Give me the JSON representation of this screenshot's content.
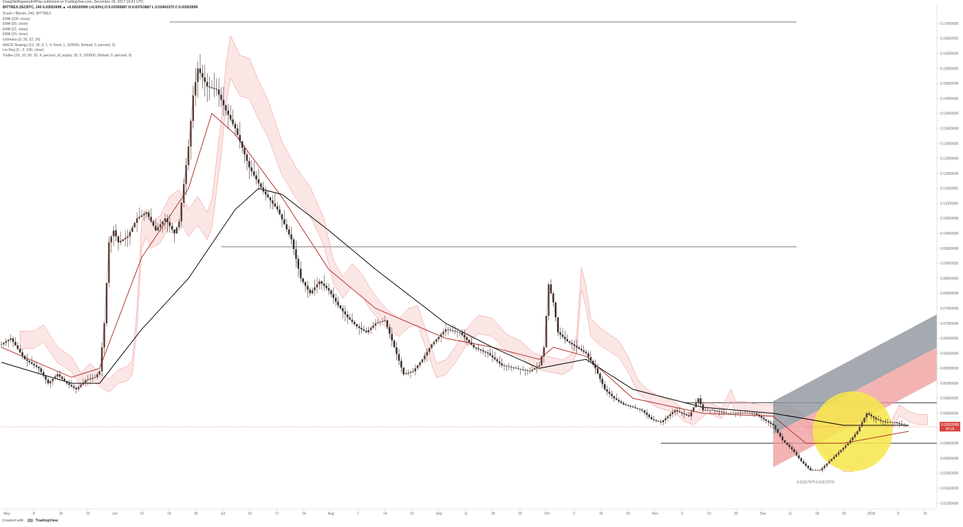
{
  "header": {
    "line1": "DawgSkillingsworth4Play published on TradingView.com, December 29, 2017 19:41 UTC",
    "line2": "BITTREX:ZECBTC, 240 0.03553999 ▲ +0.00220999 (+6.63%) O:0.03399987 H:0.03753887 L:0.03493375 C:0.03553999"
  },
  "legend": {
    "items": [
      "Zcash / Bitcoin, 240, BITTREX",
      "EMA (200, close)",
      "EMA (50, close)",
      "EMA (21, close)",
      "EMA (10, close)",
      "Ichimoku (9, 26, 52, 26)",
      "MACD Strategy (12, 26, 9, 1, 0, fixed, 1, 100000, Default, 0, percent, 0)",
      "Lin Reg (2, -2, 100, close)",
      "Turtles (20, 10, 55, 20, 4, percent_of_equity, 25, 0, 100000, Default, 0, percent, 0)"
    ]
  },
  "footer": {
    "created": "Created with",
    "brand": "TradingView"
  },
  "price_box": {
    "price": "0.03553999",
    "sub": "00:18"
  },
  "low_label": "0.01817979 0.01817979",
  "chart_data": {
    "type": "line",
    "title": "Zcash / Bitcoin, 240, BITTREX",
    "symbol": "ZECBTC",
    "timeframe": "240",
    "xlabel": "",
    "ylabel": "",
    "y_scale": "linear",
    "ylim": [
      0.0085,
      0.176
    ],
    "y_ticks": [
      "0.17000000",
      "0.16500000",
      "0.16000000",
      "0.15500000",
      "0.15000000",
      "0.14500000",
      "0.14000000",
      "0.13500000",
      "0.13000000",
      "0.12500000",
      "0.12000000",
      "0.11500000",
      "0.11000000",
      "0.10500000",
      "0.10000000",
      "0.09500000",
      "0.09000000",
      "0.08500000",
      "0.08000000",
      "0.07500000",
      "0.07000000",
      "0.06500000",
      "0.06000000",
      "0.05500000",
      "0.05000000",
      "0.04500000",
      "0.04000000",
      "0.03500000",
      "0.03000000",
      "0.02500000",
      "0.02000000",
      "0.01500000",
      "0.01000000"
    ],
    "x_ticks": [
      "May",
      "8",
      "15",
      "22",
      "Jun",
      "12",
      "19",
      "26",
      "Jul",
      "10",
      "17",
      "24",
      "Aug",
      "7",
      "14",
      "21",
      "Sep",
      "11",
      "18",
      "25",
      "Oct",
      "9",
      "16",
      "23",
      "Nov",
      "6",
      "13",
      "20",
      "Dec",
      "11",
      "18",
      "25",
      "2018",
      "8",
      "15"
    ],
    "last_price": 0.03553999,
    "horizontal_levels": [
      0.1705,
      0.0955,
      0.0435,
      0.03
    ],
    "price_series": [
      [
        0,
        0.063
      ],
      [
        2,
        0.065
      ],
      [
        5,
        0.058
      ],
      [
        8,
        0.055
      ],
      [
        10,
        0.05
      ],
      [
        12,
        0.053
      ],
      [
        14,
        0.05
      ],
      [
        16,
        0.048
      ],
      [
        18,
        0.051
      ],
      [
        20,
        0.052
      ],
      [
        21,
        0.054
      ],
      [
        22,
        0.07
      ],
      [
        23,
        0.097
      ],
      [
        24,
        0.101
      ],
      [
        25,
        0.097
      ],
      [
        27,
        0.099
      ],
      [
        29,
        0.105
      ],
      [
        31,
        0.107
      ],
      [
        33,
        0.101
      ],
      [
        35,
        0.105
      ],
      [
        37,
        0.1
      ],
      [
        38,
        0.104
      ],
      [
        40,
        0.129
      ],
      [
        41,
        0.146
      ],
      [
        42,
        0.155
      ],
      [
        44,
        0.149
      ],
      [
        46,
        0.148
      ],
      [
        48,
        0.141
      ],
      [
        50,
        0.135
      ],
      [
        53,
        0.122
      ],
      [
        56,
        0.114
      ],
      [
        59,
        0.108
      ],
      [
        62,
        0.098
      ],
      [
        64,
        0.085
      ],
      [
        66,
        0.08
      ],
      [
        68,
        0.084
      ],
      [
        70,
        0.081
      ],
      [
        72,
        0.076
      ],
      [
        74,
        0.072
      ],
      [
        76,
        0.069
      ],
      [
        78,
        0.067
      ],
      [
        80,
        0.07
      ],
      [
        82,
        0.071
      ],
      [
        84,
        0.062
      ],
      [
        86,
        0.053
      ],
      [
        88,
        0.054
      ],
      [
        90,
        0.058
      ],
      [
        92,
        0.063
      ],
      [
        95,
        0.068
      ],
      [
        98,
        0.067
      ],
      [
        101,
        0.062
      ],
      [
        104,
        0.06
      ],
      [
        107,
        0.056
      ],
      [
        110,
        0.055
      ],
      [
        113,
        0.054
      ],
      [
        115,
        0.056
      ],
      [
        116,
        0.062
      ],
      [
        117,
        0.083
      ],
      [
        118,
        0.077
      ],
      [
        119,
        0.067
      ],
      [
        121,
        0.064
      ],
      [
        123,
        0.062
      ],
      [
        125,
        0.06
      ],
      [
        127,
        0.055
      ],
      [
        129,
        0.048
      ],
      [
        131,
        0.045
      ],
      [
        133,
        0.043
      ],
      [
        135,
        0.042
      ],
      [
        137,
        0.041
      ],
      [
        139,
        0.038
      ],
      [
        141,
        0.037
      ],
      [
        144,
        0.041
      ],
      [
        147,
        0.039
      ],
      [
        149,
        0.045
      ],
      [
        150,
        0.041
      ],
      [
        152,
        0.041
      ],
      [
        155,
        0.04
      ],
      [
        158,
        0.04
      ],
      [
        161,
        0.04
      ],
      [
        163,
        0.038
      ],
      [
        165,
        0.036
      ],
      [
        167,
        0.031
      ],
      [
        169,
        0.028
      ],
      [
        171,
        0.024
      ],
      [
        173,
        0.021
      ],
      [
        175,
        0.021
      ],
      [
        177,
        0.024
      ],
      [
        179,
        0.027
      ],
      [
        181,
        0.03
      ],
      [
        183,
        0.034
      ],
      [
        185,
        0.04
      ],
      [
        187,
        0.038
      ],
      [
        189,
        0.037
      ],
      [
        191,
        0.037
      ],
      [
        193,
        0.036
      ],
      [
        194,
        0.0355
      ]
    ],
    "ema200": [
      [
        0,
        0.057
      ],
      [
        15,
        0.05
      ],
      [
        21,
        0.05
      ],
      [
        30,
        0.068
      ],
      [
        40,
        0.085
      ],
      [
        50,
        0.108
      ],
      [
        55,
        0.115
      ],
      [
        60,
        0.113
      ],
      [
        70,
        0.101
      ],
      [
        80,
        0.088
      ],
      [
        95,
        0.07
      ],
      [
        105,
        0.062
      ],
      [
        115,
        0.055
      ],
      [
        125,
        0.058
      ],
      [
        135,
        0.048
      ],
      [
        150,
        0.042
      ],
      [
        165,
        0.04
      ],
      [
        180,
        0.036
      ],
      [
        194,
        0.036
      ]
    ],
    "ema50": [
      [
        0,
        0.062
      ],
      [
        15,
        0.052
      ],
      [
        21,
        0.055
      ],
      [
        30,
        0.092
      ],
      [
        40,
        0.115
      ],
      [
        45,
        0.14
      ],
      [
        50,
        0.133
      ],
      [
        60,
        0.112
      ],
      [
        70,
        0.088
      ],
      [
        80,
        0.075
      ],
      [
        95,
        0.065
      ],
      [
        105,
        0.062
      ],
      [
        115,
        0.058
      ],
      [
        118,
        0.062
      ],
      [
        125,
        0.059
      ],
      [
        135,
        0.045
      ],
      [
        150,
        0.04
      ],
      [
        165,
        0.039
      ],
      [
        172,
        0.03
      ],
      [
        180,
        0.03
      ],
      [
        194,
        0.034
      ]
    ],
    "linreg": {
      "start": [
        165,
        0.033
      ],
      "end": [
        194,
        0.057
      ],
      "band": 0.011,
      "color_upper": "#8e949c",
      "color_lower": "#ef9a9a"
    },
    "highlight": {
      "x": 182,
      "y": 0.034,
      "color": "#f6e84a"
    },
    "colors": {
      "candle_up": "#26a69a",
      "candle_down": "#ef5350",
      "ema200": "#000000",
      "ema50": "#b2302a",
      "cloud_red": "#f4b6b6",
      "cloud_gray": "#cfcfcf",
      "level": "#666666",
      "last_price_line": "#e57373",
      "price_box": "#d9443f"
    }
  }
}
